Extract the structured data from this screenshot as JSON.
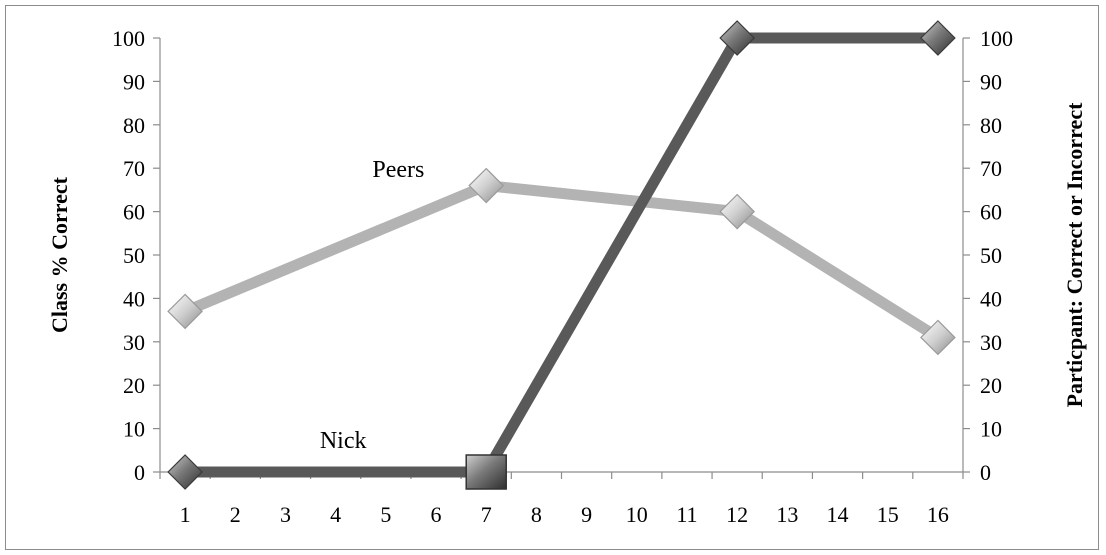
{
  "chart_data": {
    "type": "line",
    "title": "",
    "x": [
      1,
      7,
      12,
      16
    ],
    "x_ticks": [
      "1",
      "2",
      "3",
      "4",
      "5",
      "6",
      "7",
      "8",
      "9",
      "10",
      "11",
      "12",
      "13",
      "14",
      "15",
      "16"
    ],
    "ylabel_left": "Class % Correct",
    "ylabel_right": "Particpant: Correct or Incorrect",
    "ylim": [
      0,
      100
    ],
    "y_ticks": [
      "0",
      "10",
      "20",
      "30",
      "40",
      "50",
      "60",
      "70",
      "80",
      "90",
      "100"
    ],
    "grid": false,
    "series": [
      {
        "name": "Peers",
        "x": [
          1,
          7,
          12,
          16
        ],
        "values": [
          37,
          66,
          60,
          31
        ],
        "color": "#b3b3b3",
        "axis": "left"
      },
      {
        "name": "Nick",
        "x": [
          1,
          7,
          12,
          16
        ],
        "values": [
          0,
          0,
          100,
          100
        ],
        "color": "#595959",
        "axis": "right"
      }
    ]
  }
}
